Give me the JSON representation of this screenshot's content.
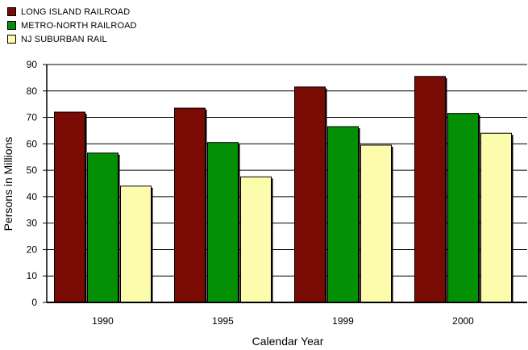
{
  "chart_data": {
    "type": "bar",
    "xlabel": "Calendar Year",
    "ylabel": "Persons in Millions",
    "categories": [
      "1990",
      "1995",
      "1999",
      "2000"
    ],
    "ylim": [
      0,
      90
    ],
    "yticks": [
      0,
      10,
      20,
      30,
      40,
      50,
      60,
      70,
      80,
      90
    ],
    "grid": true,
    "legend_position": "top-left",
    "series": [
      {
        "name": "LONG ISLAND RAILROAD",
        "color": "#7a0a04",
        "values": [
          72,
          73.5,
          81.5,
          85.5
        ]
      },
      {
        "name": "METRO-NORTH RAILROAD",
        "color": "#049004",
        "values": [
          56.5,
          60.5,
          66.5,
          71.5
        ]
      },
      {
        "name": "NJ SUBURBAN RAIL",
        "color": "#fcfcac",
        "values": [
          44,
          47.5,
          59.5,
          64
        ]
      }
    ]
  }
}
